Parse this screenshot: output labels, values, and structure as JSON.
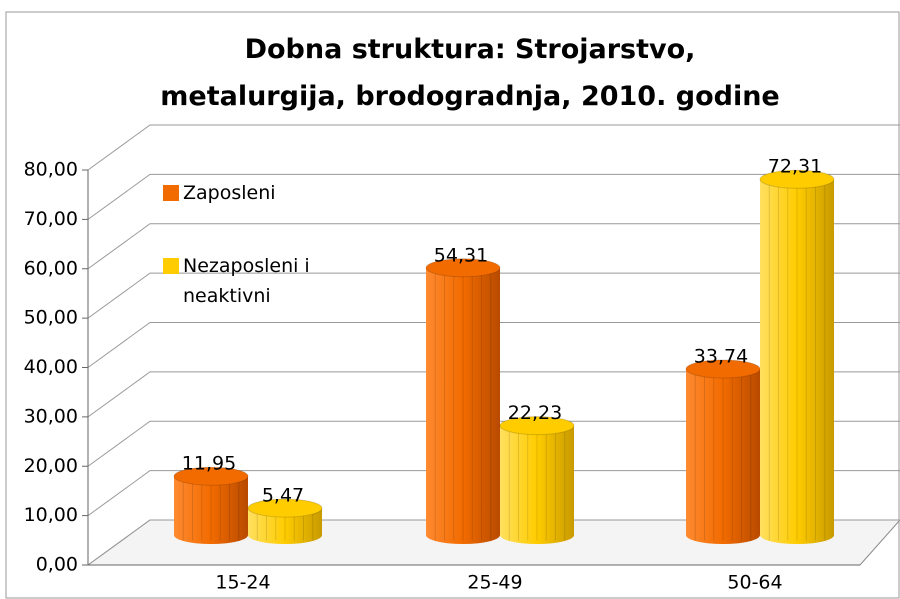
{
  "chart_data": {
    "type": "bar3d",
    "title": "Dobna struktura: Strojarstvo, metalurgija, brodogradnja, 2010. godine",
    "categories": [
      "15-24",
      "25-49",
      "50-64"
    ],
    "series": [
      {
        "name": "Zaposleni",
        "color": "#f26b00",
        "values": [
          11.95,
          54.31,
          33.74
        ],
        "value_labels": [
          "11,95",
          "54,31",
          "33,74"
        ]
      },
      {
        "name": "Nezaposleni i neaktivni",
        "color": "#ffcc00",
        "values": [
          5.47,
          22.23,
          72.31
        ],
        "value_labels": [
          "5,47",
          "22,23",
          "72,31"
        ]
      }
    ],
    "ylim": [
      0,
      80
    ],
    "yticks": [
      {
        "value": 0,
        "label": "0,00"
      },
      {
        "value": 10,
        "label": "10,00"
      },
      {
        "value": 20,
        "label": "20,00"
      },
      {
        "value": 30,
        "label": "30,00"
      },
      {
        "value": 40,
        "label": "40,00"
      },
      {
        "value": 50,
        "label": "50,00"
      },
      {
        "value": 60,
        "label": "60,00"
      },
      {
        "value": 70,
        "label": "70,00"
      },
      {
        "value": 80,
        "label": "80,00"
      }
    ],
    "grid": true,
    "legend": "left"
  }
}
